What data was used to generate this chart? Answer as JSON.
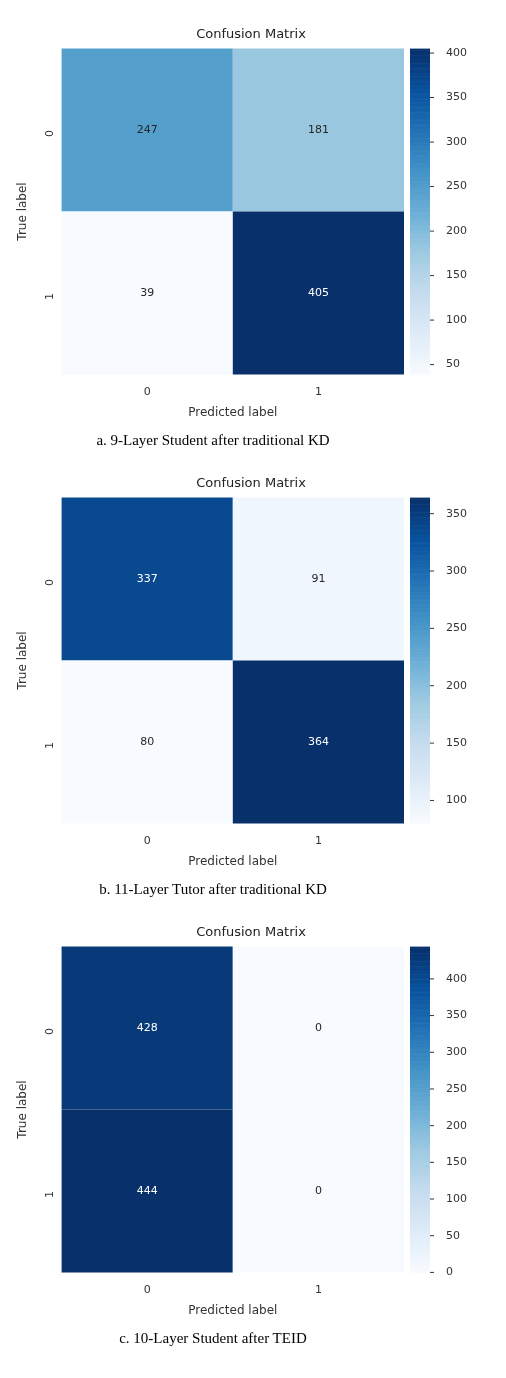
{
  "chart_data": [
    {
      "type": "heatmap",
      "title": "Confusion Matrix",
      "xlabel": "Predicted label",
      "ylabel": "True label",
      "categories": [
        "0",
        "1"
      ],
      "y_categories": [
        "0",
        "1"
      ],
      "cells": [
        [
          247,
          181
        ],
        [
          39,
          405
        ]
      ],
      "data_labels": true,
      "clim": [
        39,
        405
      ],
      "cticks": [
        50,
        100,
        150,
        200,
        250,
        300,
        350,
        400
      ],
      "annotations": [
        "a. 9-Layer Student after traditional KD"
      ]
    },
    {
      "type": "heatmap",
      "title": "Confusion Matrix",
      "xlabel": "Predicted label",
      "ylabel": "True label",
      "categories": [
        "0",
        "1"
      ],
      "y_categories": [
        "0",
        "1"
      ],
      "cells": [
        [
          337,
          91
        ],
        [
          80,
          364
        ]
      ],
      "data_labels": true,
      "clim": [
        80,
        364
      ],
      "cticks": [
        100,
        150,
        200,
        250,
        300,
        350
      ],
      "annotations": [
        "b. 11-Layer Tutor after traditional KD"
      ]
    },
    {
      "type": "heatmap",
      "title": "Confusion Matrix",
      "xlabel": "Predicted label",
      "ylabel": "True label",
      "categories": [
        "0",
        "1"
      ],
      "y_categories": [
        "0",
        "1"
      ],
      "cells": [
        [
          428,
          0
        ],
        [
          444,
          0
        ]
      ],
      "data_labels": true,
      "clim": [
        0,
        444
      ],
      "cticks": [
        0,
        50,
        100,
        150,
        200,
        250,
        300,
        350,
        400
      ],
      "annotations": [
        "c. 10-Layer Student after TEID"
      ]
    }
  ]
}
